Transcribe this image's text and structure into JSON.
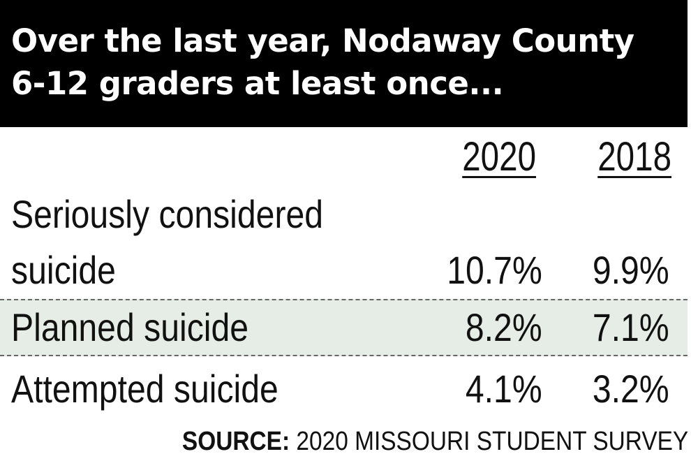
{
  "chart_data": {
    "type": "table",
    "title_lines": [
      "Over the last year, Nodaway County",
      "6-12 graders at least once..."
    ],
    "columns": [
      "2020",
      "2018"
    ],
    "rows": [
      {
        "label_lines": [
          "Seriously considered",
          "suicide"
        ],
        "values": [
          "10.7%",
          "9.9%"
        ]
      },
      {
        "label_lines": [
          "Planned suicide"
        ],
        "values": [
          "8.2%",
          "7.1%"
        ]
      },
      {
        "label_lines": [
          "Attempted suicide"
        ],
        "values": [
          "4.1%",
          "3.2%"
        ]
      }
    ],
    "source_label": "SOURCE:",
    "source_text": " 2020 MISSOURI STUDENT SURVEY",
    "highlight_row_color": "#e6ece6",
    "header_background": "#000000"
  }
}
